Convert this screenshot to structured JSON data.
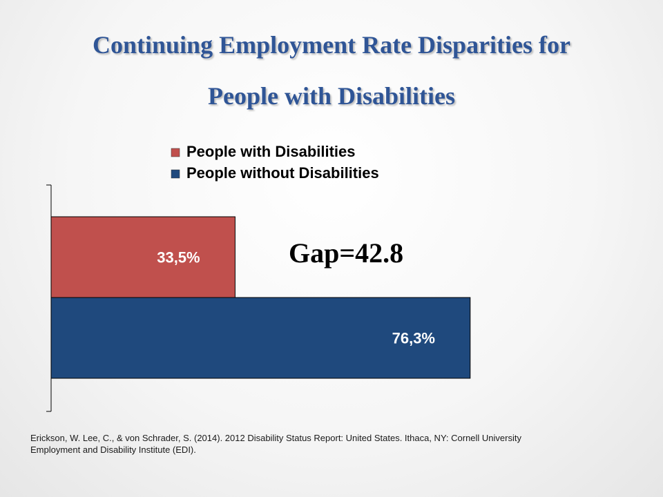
{
  "title_line1": "Continuing Employment Rate Disparities for",
  "title_line2": "People with Disabilities",
  "annotation": "Gap=42.8",
  "citation_line1": "Erickson, W. Lee, C., & von Schrader, S. (2014). 2012 Disability Status Report: United States. Ithaca, NY: Cornell University",
  "citation_line2": "Employment and Disability Institute (EDI).",
  "chart_data": {
    "type": "bar",
    "orientation": "horizontal",
    "categories": [
      ""
    ],
    "series": [
      {
        "name": "People with Disabilities",
        "values": [
          33.5
        ],
        "label": "33,5%",
        "color": "#c0504d"
      },
      {
        "name": "People without Disabilities",
        "values": [
          76.3
        ],
        "label": "76,3%",
        "color": "#1f497d"
      }
    ],
    "xlim": [
      0,
      85
    ],
    "grid": false,
    "legend": "top-right",
    "annotation": "Gap=42.8"
  }
}
